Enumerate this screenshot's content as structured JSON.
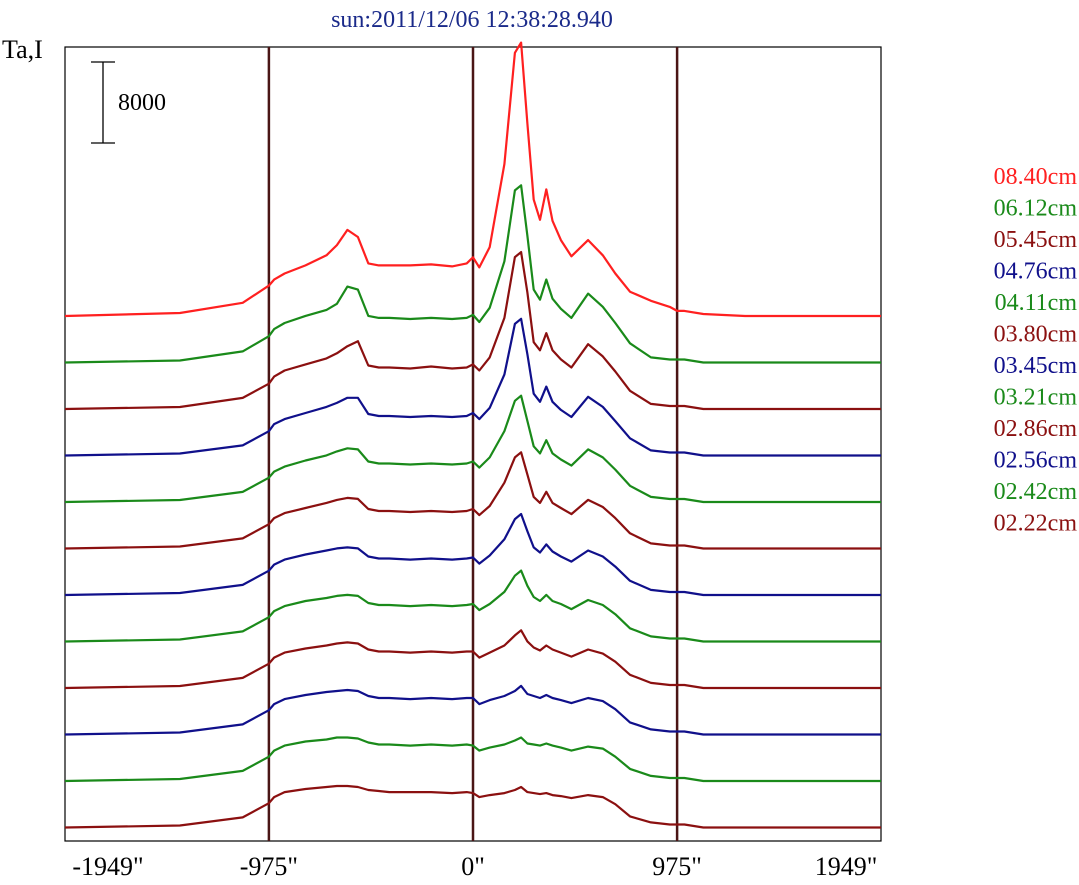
{
  "chart_data": {
    "type": "line",
    "title": "sun:2011/12/06 12:38:28.940",
    "ylabel": "Ta,I",
    "scale_bar_label": "8000",
    "xlim": [
      -1949,
      1949
    ],
    "xticks": [
      -1949,
      -975,
      0,
      975,
      1949
    ],
    "xtick_labels": [
      "-1949\"",
      "-975\"",
      "0\"",
      "975\"",
      "1949\""
    ],
    "vlines": [
      -975,
      0,
      975
    ],
    "colors": {
      "red": "#ff2020",
      "green": "#1a8a1a",
      "darkred": "#8b1010",
      "blue": "#10108b",
      "limb_line": "#4a1515"
    },
    "x_profile": [
      -1949,
      -1400,
      -1100,
      -975,
      -950,
      -900,
      -800,
      -700,
      -650,
      -600,
      -550,
      -500,
      -450,
      -400,
      -300,
      -200,
      -100,
      -30,
      0,
      30,
      80,
      150,
      200,
      230,
      260,
      290,
      320,
      350,
      380,
      420,
      470,
      550,
      620,
      680,
      750,
      850,
      940,
      975,
      1010,
      1100,
      1300,
      1600,
      1949
    ],
    "series": [
      {
        "name": "08.40cm",
        "color": "red",
        "values": [
          0,
          300,
          1300,
          3000,
          3600,
          4200,
          5000,
          6000,
          7000,
          8500,
          7800,
          5200,
          5000,
          5000,
          5000,
          5100,
          4900,
          5200,
          5800,
          4800,
          6800,
          15000,
          26000,
          27000,
          19000,
          11500,
          9500,
          12500,
          9400,
          7500,
          5900,
          7500,
          6000,
          4200,
          2400,
          1500,
          900,
          500,
          500,
          200,
          0,
          0,
          0
        ]
      },
      {
        "name": "06.12cm",
        "color": "green",
        "values": [
          0,
          200,
          1100,
          2600,
          3300,
          3900,
          4600,
          5200,
          5800,
          7500,
          7200,
          4600,
          4400,
          4400,
          4300,
          4400,
          4300,
          4400,
          4700,
          4000,
          5400,
          10000,
          17000,
          17500,
          12500,
          7200,
          6200,
          8200,
          6300,
          5300,
          4400,
          6800,
          5500,
          3900,
          1900,
          500,
          300,
          300,
          300,
          0,
          0,
          0,
          0
        ]
      },
      {
        "name": "05.45cm",
        "color": "darkred",
        "values": [
          0,
          200,
          1100,
          2500,
          3200,
          3800,
          4400,
          5000,
          5500,
          6200,
          6700,
          4300,
          4100,
          4100,
          4000,
          4200,
          4000,
          4100,
          4400,
          3800,
          5100,
          9000,
          15000,
          15500,
          11500,
          6600,
          5800,
          7500,
          5800,
          4900,
          4100,
          6400,
          5200,
          3700,
          1800,
          500,
          300,
          300,
          300,
          0,
          0,
          0,
          0
        ]
      },
      {
        "name": "04.76cm",
        "color": "blue",
        "values": [
          0,
          200,
          1000,
          2400,
          3100,
          3600,
          4200,
          4800,
          5200,
          5700,
          5700,
          4100,
          3900,
          3900,
          3800,
          3900,
          3800,
          3900,
          4200,
          3600,
          4700,
          8000,
          13000,
          13500,
          10000,
          6100,
          5300,
          6800,
          5300,
          4500,
          3800,
          5800,
          4800,
          3400,
          1700,
          500,
          300,
          300,
          300,
          0,
          0,
          0,
          0
        ]
      },
      {
        "name": "04.11cm",
        "color": "green",
        "values": [
          0,
          200,
          1000,
          2400,
          3000,
          3500,
          4100,
          4600,
          5000,
          5300,
          5200,
          4000,
          3800,
          3800,
          3700,
          3800,
          3700,
          3800,
          4000,
          3400,
          4400,
          7000,
          10000,
          10500,
          8000,
          5500,
          4800,
          6100,
          4800,
          4200,
          3600,
          5200,
          4400,
          3200,
          1600,
          500,
          300,
          300,
          300,
          0,
          0,
          0,
          0
        ]
      },
      {
        "name": "03.80cm",
        "color": "darkred",
        "values": [
          0,
          200,
          1000,
          2400,
          3000,
          3500,
          4000,
          4500,
          4800,
          5000,
          4900,
          3900,
          3700,
          3700,
          3600,
          3700,
          3600,
          3700,
          3900,
          3300,
          4200,
          6500,
          9000,
          9500,
          7300,
          5100,
          4500,
          5600,
          4500,
          4000,
          3400,
          4800,
          4100,
          3000,
          1500,
          500,
          300,
          300,
          300,
          0,
          0,
          0,
          0
        ]
      },
      {
        "name": "03.45cm",
        "color": "blue",
        "values": [
          0,
          200,
          1000,
          2400,
          3000,
          3500,
          4000,
          4400,
          4600,
          4700,
          4600,
          3800,
          3600,
          3600,
          3500,
          3600,
          3500,
          3600,
          3700,
          3100,
          3900,
          5500,
          7500,
          8000,
          6300,
          4700,
          4200,
          5000,
          4300,
          3800,
          3300,
          4400,
          3800,
          2800,
          1400,
          500,
          300,
          300,
          300,
          0,
          0,
          0,
          0
        ]
      },
      {
        "name": "03.21cm",
        "color": "green",
        "values": [
          0,
          200,
          1000,
          2400,
          3000,
          3500,
          4000,
          4300,
          4500,
          4600,
          4500,
          3800,
          3600,
          3600,
          3500,
          3600,
          3500,
          3600,
          3700,
          3100,
          3700,
          4900,
          6500,
          7000,
          5500,
          4400,
          4000,
          4600,
          4000,
          3700,
          3200,
          4100,
          3600,
          2700,
          1300,
          500,
          300,
          300,
          300,
          0,
          0,
          0,
          0
        ]
      },
      {
        "name": "02.86cm",
        "color": "darkred",
        "values": [
          0,
          200,
          1000,
          2400,
          3000,
          3500,
          3900,
          4200,
          4400,
          4500,
          4400,
          3800,
          3600,
          3600,
          3500,
          3600,
          3500,
          3600,
          3600,
          3000,
          3500,
          4200,
          5200,
          5700,
          4600,
          4000,
          3700,
          4200,
          3800,
          3500,
          3100,
          3800,
          3400,
          2600,
          1300,
          500,
          300,
          300,
          300,
          0,
          0,
          0,
          0
        ]
      },
      {
        "name": "02.56cm",
        "color": "blue",
        "values": [
          0,
          200,
          1000,
          2400,
          3000,
          3500,
          3900,
          4200,
          4300,
          4400,
          4300,
          3800,
          3600,
          3600,
          3500,
          3600,
          3500,
          3600,
          3600,
          3000,
          3400,
          3800,
          4300,
          4800,
          4000,
          3800,
          3600,
          3900,
          3600,
          3400,
          3100,
          3600,
          3300,
          2500,
          1200,
          500,
          300,
          300,
          300,
          0,
          0,
          0,
          0
        ]
      },
      {
        "name": "02.42cm",
        "color": "green",
        "values": [
          0,
          200,
          1000,
          2400,
          3000,
          3500,
          3900,
          4100,
          4300,
          4300,
          4200,
          3800,
          3600,
          3600,
          3500,
          3600,
          3500,
          3600,
          3500,
          3000,
          3300,
          3600,
          4000,
          4300,
          3700,
          3600,
          3500,
          3700,
          3500,
          3300,
          3000,
          3400,
          3200,
          2400,
          1200,
          500,
          300,
          300,
          300,
          0,
          0,
          0,
          0
        ]
      },
      {
        "name": "02.22cm",
        "color": "darkred",
        "values": [
          0,
          200,
          1000,
          2400,
          3000,
          3500,
          3800,
          4000,
          4100,
          4100,
          4000,
          3700,
          3600,
          3500,
          3500,
          3500,
          3400,
          3500,
          3400,
          3000,
          3200,
          3400,
          3700,
          4000,
          3500,
          3400,
          3300,
          3400,
          3200,
          3100,
          2900,
          3200,
          3000,
          2300,
          1100,
          500,
          300,
          300,
          300,
          0,
          0,
          0,
          0
        ]
      }
    ]
  }
}
